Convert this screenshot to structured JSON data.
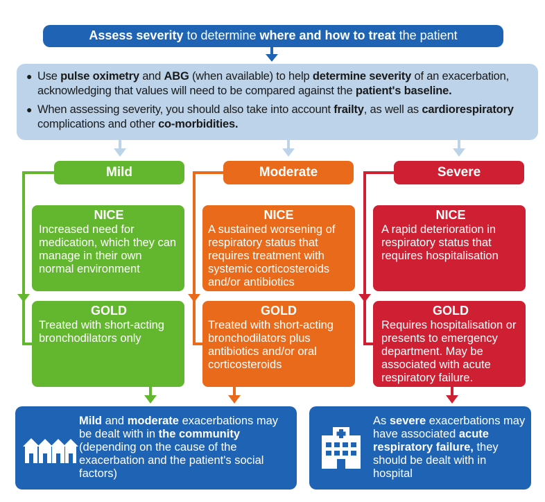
{
  "top_bar": {
    "p1": "Assess severity",
    "p2": " to determine ",
    "p3": "where and how to treat",
    "p4": " the patient"
  },
  "info": {
    "b1": {
      "p1": "Use ",
      "p2": "pulse oximetry",
      "p3": " and ",
      "p4": "ABG",
      "p5": " (when available) to help ",
      "p6": "determine severity",
      "p7": " of an exacerbation, acknowledging that values will need to be compared against the ",
      "p8": "patient's baseline."
    },
    "b2": {
      "p1": "When assessing severity, you should also take into account ",
      "p2": "frailty",
      "p3": ", as well as ",
      "p4": "cardiorespiratory",
      "p5": "  complications and other ",
      "p6": "co-morbidities."
    }
  },
  "columns": {
    "mild": {
      "label": "Mild",
      "nice_title": "NICE",
      "nice_text": "Increased need for medication, which they can  manage in their own normal environment",
      "gold_title": "GOLD",
      "gold_text": "Treated with short-acting bronchodilators only"
    },
    "moderate": {
      "label": "Moderate",
      "nice_title": "NICE",
      "nice_text": "A sustained worsening of respiratory status that requires treatment with systemic corticosteroids and/or antibiotics",
      "gold_title": "GOLD",
      "gold_text": "Treated with short-acting bronchodilators plus antibiotics and/or oral corticosteroids"
    },
    "severe": {
      "label": "Severe",
      "nice_title": "NICE",
      "nice_text": "A rapid deterioration in respiratory status that requires hospitalisation",
      "gold_title": "GOLD",
      "gold_text": "Requires hospitalisation or presents to emergency department. May be associated with acute respiratory failure."
    }
  },
  "bottom_left": {
    "p1": "Mild",
    "p2": " and ",
    "p3": "moderate",
    "p4": " exacerbations may be dealt with in ",
    "p5": "the community",
    "p6": " (depending on the cause of the exacerbation and the patient's social factors)"
  },
  "bottom_right": {
    "p1": "As ",
    "p2": "severe",
    "p3": " exacerbations may have associated ",
    "p4": "acute respiratory failure,",
    "p5": " they should be dealt with in hospital"
  },
  "icons": {
    "community": "houses-icon",
    "hospital": "hospital-icon"
  },
  "colors": {
    "blue": "#1f64b4",
    "light_blue": "#bcd3ea",
    "green": "#62b72f",
    "orange": "#e96a1a",
    "red": "#cf1f33"
  }
}
